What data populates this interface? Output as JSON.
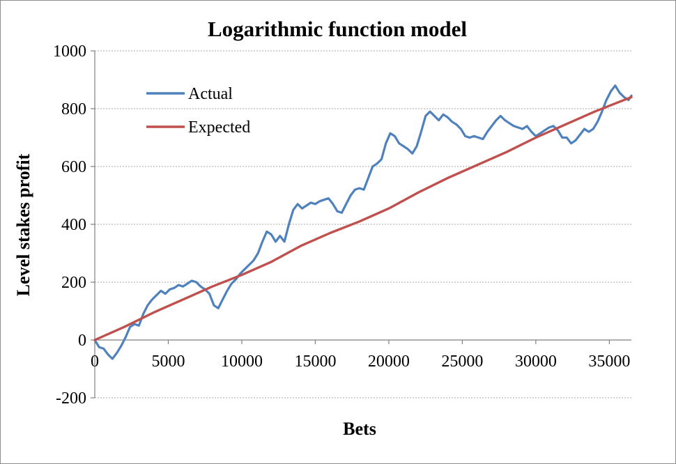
{
  "chart_data": {
    "type": "line",
    "title": "Logarithmic function model",
    "xlabel": "Bets",
    "ylabel": "Level stakes profit",
    "xlim": [
      0,
      36500
    ],
    "ylim": [
      -200,
      1000
    ],
    "x_ticks": [
      0,
      5000,
      10000,
      15000,
      20000,
      25000,
      30000,
      35000
    ],
    "y_ticks": [
      -200,
      0,
      200,
      400,
      600,
      800,
      1000
    ],
    "grid": "horizontal",
    "legend": "top-left",
    "series": [
      {
        "name": "Actual",
        "color": "#4f81bd",
        "points": [
          [
            0,
            0
          ],
          [
            300,
            -25
          ],
          [
            600,
            -30
          ],
          [
            900,
            -50
          ],
          [
            1200,
            -65
          ],
          [
            1500,
            -45
          ],
          [
            1800,
            -20
          ],
          [
            2100,
            10
          ],
          [
            2400,
            45
          ],
          [
            2700,
            55
          ],
          [
            3000,
            50
          ],
          [
            3300,
            90
          ],
          [
            3600,
            120
          ],
          [
            3900,
            140
          ],
          [
            4200,
            155
          ],
          [
            4500,
            170
          ],
          [
            4800,
            160
          ],
          [
            5100,
            175
          ],
          [
            5400,
            180
          ],
          [
            5700,
            190
          ],
          [
            6000,
            185
          ],
          [
            6300,
            195
          ],
          [
            6600,
            205
          ],
          [
            6900,
            200
          ],
          [
            7200,
            185
          ],
          [
            7500,
            175
          ],
          [
            7800,
            160
          ],
          [
            8100,
            120
          ],
          [
            8400,
            110
          ],
          [
            8700,
            140
          ],
          [
            9000,
            170
          ],
          [
            9300,
            195
          ],
          [
            9600,
            210
          ],
          [
            9900,
            230
          ],
          [
            10200,
            245
          ],
          [
            10500,
            260
          ],
          [
            10800,
            275
          ],
          [
            11100,
            300
          ],
          [
            11400,
            340
          ],
          [
            11700,
            375
          ],
          [
            12000,
            365
          ],
          [
            12300,
            340
          ],
          [
            12600,
            360
          ],
          [
            12900,
            340
          ],
          [
            13200,
            400
          ],
          [
            13500,
            450
          ],
          [
            13800,
            470
          ],
          [
            14100,
            455
          ],
          [
            14400,
            465
          ],
          [
            14700,
            475
          ],
          [
            15000,
            470
          ],
          [
            15300,
            480
          ],
          [
            15600,
            485
          ],
          [
            15900,
            490
          ],
          [
            16200,
            470
          ],
          [
            16500,
            445
          ],
          [
            16800,
            440
          ],
          [
            17100,
            470
          ],
          [
            17400,
            500
          ],
          [
            17700,
            520
          ],
          [
            18000,
            525
          ],
          [
            18300,
            520
          ],
          [
            18600,
            560
          ],
          [
            18900,
            600
          ],
          [
            19200,
            610
          ],
          [
            19500,
            625
          ],
          [
            19800,
            680
          ],
          [
            20100,
            715
          ],
          [
            20400,
            705
          ],
          [
            20700,
            680
          ],
          [
            21000,
            670
          ],
          [
            21300,
            660
          ],
          [
            21600,
            645
          ],
          [
            21900,
            670
          ],
          [
            22200,
            720
          ],
          [
            22500,
            775
          ],
          [
            22800,
            790
          ],
          [
            23100,
            775
          ],
          [
            23400,
            760
          ],
          [
            23700,
            780
          ],
          [
            24000,
            770
          ],
          [
            24300,
            755
          ],
          [
            24600,
            745
          ],
          [
            24900,
            730
          ],
          [
            25200,
            705
          ],
          [
            25500,
            700
          ],
          [
            25800,
            705
          ],
          [
            26100,
            700
          ],
          [
            26400,
            695
          ],
          [
            26700,
            720
          ],
          [
            27000,
            740
          ],
          [
            27300,
            760
          ],
          [
            27600,
            775
          ],
          [
            27900,
            760
          ],
          [
            28200,
            750
          ],
          [
            28500,
            740
          ],
          [
            28800,
            735
          ],
          [
            29100,
            730
          ],
          [
            29400,
            740
          ],
          [
            29700,
            720
          ],
          [
            30000,
            705
          ],
          [
            30300,
            715
          ],
          [
            30600,
            725
          ],
          [
            30900,
            735
          ],
          [
            31200,
            740
          ],
          [
            31500,
            725
          ],
          [
            31800,
            700
          ],
          [
            32100,
            700
          ],
          [
            32400,
            680
          ],
          [
            32700,
            690
          ],
          [
            33000,
            710
          ],
          [
            33300,
            730
          ],
          [
            33600,
            720
          ],
          [
            33900,
            730
          ],
          [
            34200,
            755
          ],
          [
            34500,
            790
          ],
          [
            34800,
            830
          ],
          [
            35100,
            860
          ],
          [
            35400,
            880
          ],
          [
            35700,
            855
          ],
          [
            36000,
            840
          ],
          [
            36300,
            830
          ],
          [
            36500,
            845
          ]
        ]
      },
      {
        "name": "Expected",
        "color": "#c0504d",
        "points": [
          [
            0,
            0
          ],
          [
            2000,
            45
          ],
          [
            4000,
            95
          ],
          [
            6000,
            140
          ],
          [
            8000,
            185
          ],
          [
            10000,
            225
          ],
          [
            12000,
            270
          ],
          [
            14000,
            325
          ],
          [
            16000,
            370
          ],
          [
            18000,
            410
          ],
          [
            20000,
            455
          ],
          [
            22000,
            510
          ],
          [
            24000,
            560
          ],
          [
            26000,
            605
          ],
          [
            28000,
            650
          ],
          [
            30000,
            700
          ],
          [
            32000,
            745
          ],
          [
            34000,
            790
          ],
          [
            36500,
            840
          ]
        ]
      }
    ]
  }
}
